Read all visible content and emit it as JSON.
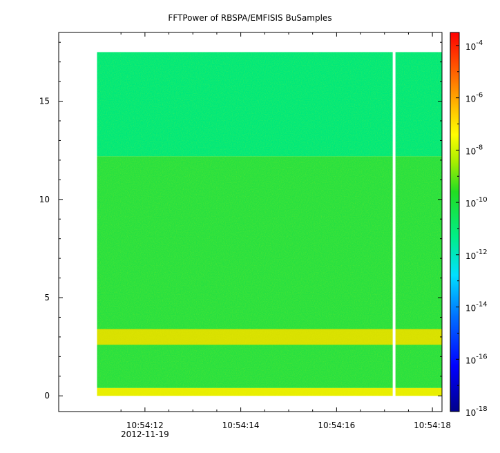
{
  "chart_data": {
    "type": "heatmap",
    "title": "FFTPower of RBSPA/EMFISIS  BuSamples",
    "x_ticks": [
      {
        "label": "10:54:12",
        "sublabel": "2012-11-19",
        "value": 12
      },
      {
        "label": "10:54:14",
        "sublabel": "",
        "value": 14
      },
      {
        "label": "10:54:16",
        "sublabel": "",
        "value": 16
      },
      {
        "label": "10:54:18",
        "sublabel": "",
        "value": 18
      }
    ],
    "xlim": [
      10.2,
      18.2
    ],
    "data_x_range": [
      11.0,
      18.2
    ],
    "gap_x": 17.2,
    "y_ticks": [
      "0",
      "5",
      "10",
      "15"
    ],
    "ylim": [
      -0.8,
      18.5
    ],
    "data_y_range": [
      0,
      17.5
    ],
    "colorbar": {
      "scale": "log",
      "range_exponents": [
        -18,
        -3.5
      ],
      "ticks": [
        {
          "base": "10",
          "exp": "-18",
          "value": -18
        },
        {
          "base": "10",
          "exp": "-16",
          "value": -16
        },
        {
          "base": "10",
          "exp": "-14",
          "value": -14
        },
        {
          "base": "10",
          "exp": "-12",
          "value": -12
        },
        {
          "base": "10",
          "exp": "-10",
          "value": -10
        },
        {
          "base": "10",
          "exp": "-8",
          "value": -8
        },
        {
          "base": "10",
          "exp": "-6",
          "value": -6
        },
        {
          "base": "10",
          "exp": "-4",
          "value": -4
        }
      ]
    },
    "bands": [
      {
        "y_from": 12.2,
        "y_to": 17.5,
        "log_power": -11.6,
        "color": "#00e87a"
      },
      {
        "y_from": 0.4,
        "y_to": 12.2,
        "log_power": -10.2,
        "color": "#28e040"
      },
      {
        "y_from": 2.6,
        "y_to": 3.4,
        "log_power": -8.5,
        "color": "#d8e000"
      },
      {
        "y_from": 0.0,
        "y_to": 0.4,
        "log_power": -8.3,
        "color": "#e8ee00"
      }
    ],
    "grid": false,
    "legend": "colorbar-right"
  }
}
